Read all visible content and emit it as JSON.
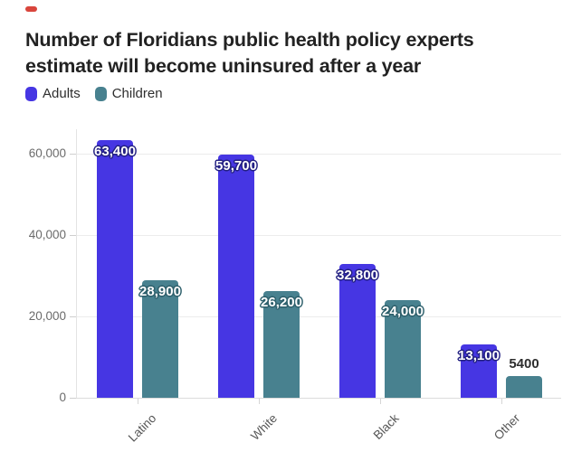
{
  "page": {
    "background": "#ffffff",
    "red_mark_color": "#d9453c"
  },
  "title_lines": [
    "Number of Floridians public health policy experts",
    "estimate will become uninsured after a year"
  ],
  "chart_data": {
    "type": "bar",
    "title": "Number of Floridians public health policy experts estimate will become uninsured after a year",
    "categories": [
      "Latino",
      "White",
      "Black",
      "Other"
    ],
    "series": [
      {
        "name": "Adults",
        "color": "#4636e3",
        "label_outline_color": "#232082",
        "values": [
          63400,
          59700,
          32800,
          13100
        ],
        "value_labels": [
          "63,400",
          "59,700",
          "32,800",
          "13,100"
        ]
      },
      {
        "name": "Children",
        "color": "#48818f",
        "label_outline_color": "#2d5f6b",
        "values": [
          28900,
          26200,
          24000,
          5400
        ],
        "value_labels": [
          "28,900",
          "26,200",
          "24,000",
          "5400"
        ]
      }
    ],
    "y_axis": {
      "ticks": [
        0,
        20000,
        40000,
        60000
      ],
      "tick_labels": [
        "0",
        "20,000",
        "40,000",
        "60,000"
      ],
      "range": [
        0,
        66000
      ]
    },
    "grid": true,
    "legend_position": "top-left",
    "xlabel": "",
    "ylabel": ""
  }
}
